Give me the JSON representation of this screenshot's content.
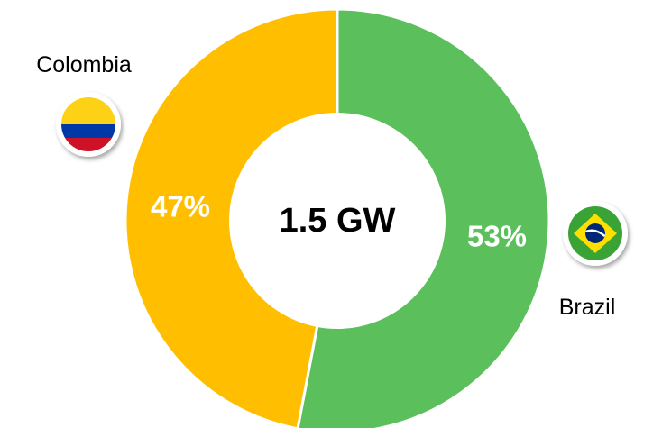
{
  "chart_data": {
    "type": "pie",
    "center_label": "1.5 GW",
    "series": [
      {
        "name": "Brazil",
        "value": 53,
        "label": "53%",
        "color": "#5bbf5b",
        "flag_icon": "brazil-flag-icon"
      },
      {
        "name": "Colombia",
        "value": 47,
        "label": "47%",
        "color": "#ffbf00",
        "flag_icon": "colombia-flag-icon"
      }
    ],
    "start_angle_deg": 0,
    "direction": "clockwise",
    "donut": true
  },
  "colors": {
    "separator": "#ffffff",
    "colombia_flag": [
      "#fcd116",
      "#0038a8",
      "#ce1126"
    ],
    "brazil_flag": [
      "#3aa335",
      "#ffdf00",
      "#002776"
    ]
  }
}
